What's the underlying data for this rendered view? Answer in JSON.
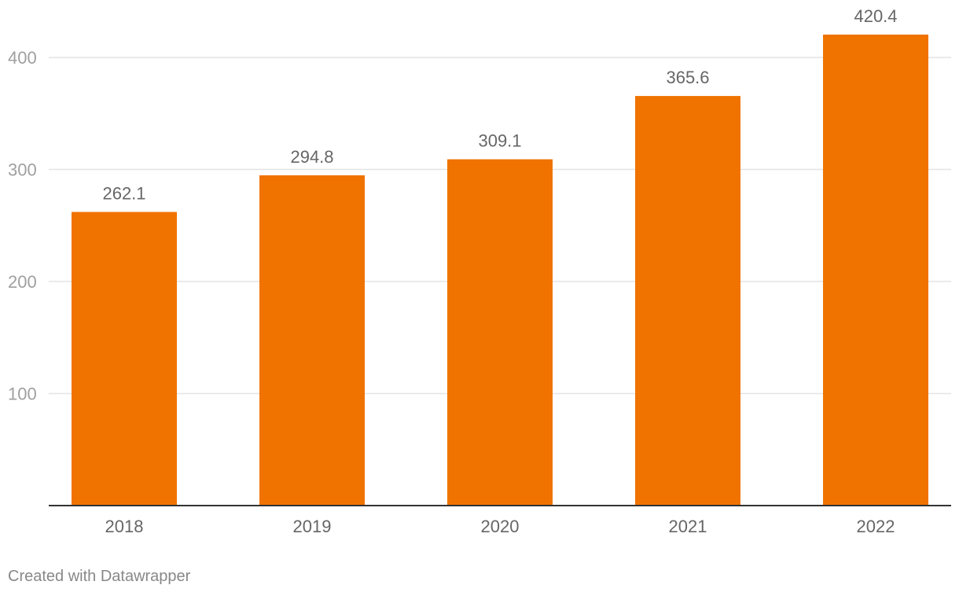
{
  "chart_data": {
    "type": "bar",
    "categories": [
      "2018",
      "2019",
      "2020",
      "2021",
      "2022"
    ],
    "values": [
      262.1,
      294.8,
      309.1,
      365.6,
      420.4
    ],
    "value_labels": [
      "262.1",
      "294.8",
      "309.1",
      "365.6",
      "420.4"
    ],
    "title": "",
    "xlabel": "",
    "ylabel": "",
    "ylim": [
      0,
      420.4
    ],
    "yticks": [
      100,
      200,
      300,
      400
    ],
    "ytick_labels": [
      "100",
      "200",
      "300",
      "400"
    ],
    "grid": true,
    "bar_color": "#f07300"
  },
  "footer": {
    "credit": "Created with Datawrapper"
  }
}
